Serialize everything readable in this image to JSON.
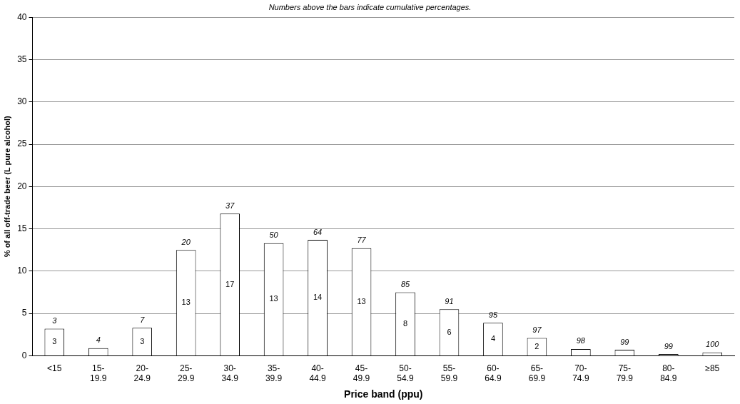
{
  "chart_data": {
    "type": "bar",
    "xlabel": "Price band (ppu)",
    "ylabel": "% of all off-trade beer (L pure alcohol)",
    "categories": [
      "<15",
      "15-19.9",
      "20-24.9",
      "25-29.9",
      "30-34.9",
      "35-39.9",
      "40-44.9",
      "45-49.9",
      "50-54.9",
      "55-59.9",
      "60-64.9",
      "65-69.9",
      "70-74.9",
      "75-79.9",
      "80-84.9",
      "≥85"
    ],
    "values": [
      3.2,
      0.9,
      3.3,
      12.5,
      16.8,
      13.3,
      13.7,
      12.7,
      7.5,
      5.5,
      3.9,
      2.1,
      0.8,
      0.7,
      0.2,
      0.4
    ],
    "value_labels": [
      "3",
      null,
      "3",
      "13",
      "17",
      "13",
      "14",
      "13",
      "8",
      "6",
      "4",
      "2",
      null,
      null,
      null,
      null
    ],
    "color": "#ffffff",
    "ylim": [
      0,
      40
    ],
    "yticks": [
      0,
      5,
      10,
      15,
      20,
      25,
      30,
      35,
      40
    ],
    "grid": "y",
    "annotations": [
      "Numbers above the bars indicate cumulative percentages.",
      {
        "text": "3",
        "x": "<15",
        "y": 3.2
      },
      {
        "text": "4",
        "x": "15-19.9",
        "y": 0.9
      },
      {
        "text": "7",
        "x": "20-24.9",
        "y": 3.3
      },
      {
        "text": "20",
        "x": "25-29.9",
        "y": 12.5
      },
      {
        "text": "37",
        "x": "30-34.9",
        "y": 16.8
      },
      {
        "text": "50",
        "x": "35-39.9",
        "y": 13.3
      },
      {
        "text": "64",
        "x": "40-44.9",
        "y": 13.7
      },
      {
        "text": "77",
        "x": "45-49.9",
        "y": 12.7
      },
      {
        "text": "85",
        "x": "50-54.9",
        "y": 7.5
      },
      {
        "text": "91",
        "x": "55-59.9",
        "y": 5.5
      },
      {
        "text": "95",
        "x": "60-64.9",
        "y": 3.9
      },
      {
        "text": "97",
        "x": "65-69.9",
        "y": 2.1
      },
      {
        "text": "98",
        "x": "70-74.9",
        "y": 0.8
      },
      {
        "text": "99",
        "x": "75-79.9",
        "y": 0.7
      },
      {
        "text": "99",
        "x": "80-84.9",
        "y": 0.2
      },
      {
        "text": "100",
        "x": "≥85",
        "y": 0.4
      }
    ]
  }
}
